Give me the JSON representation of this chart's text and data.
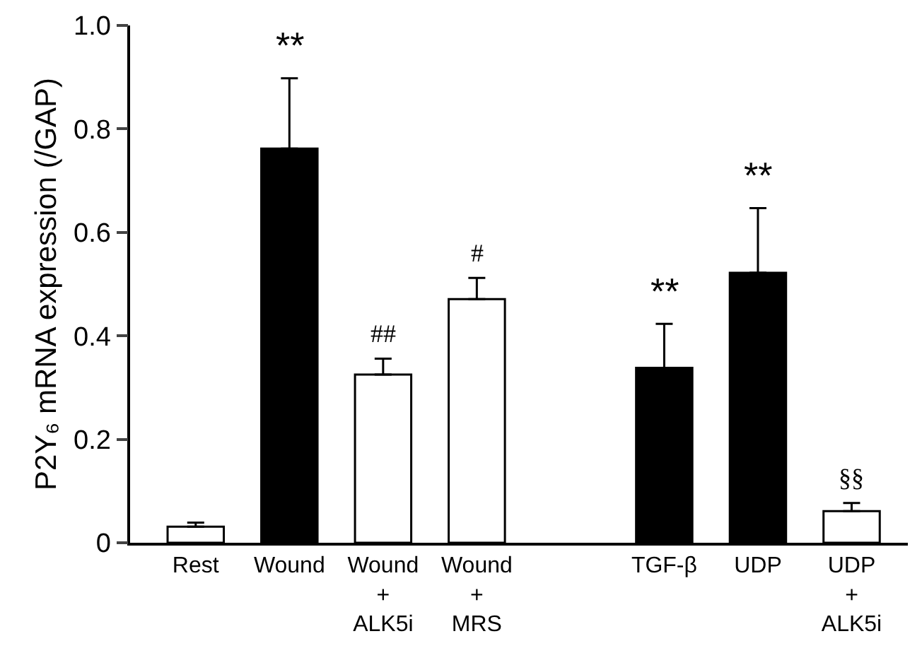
{
  "chart_data": {
    "type": "bar",
    "ylabel": "P2Y₆ mRNA expression (/GAP)",
    "categories": [
      "Rest",
      "Wound",
      "Wound\n+\nALK5i",
      "Wound\n+\nMRS",
      null,
      "TGF-β",
      "UDP",
      "UDP\n+\nALK5i"
    ],
    "values": [
      0.031,
      0.762,
      0.325,
      0.471,
      null,
      0.338,
      0.522,
      0.061
    ],
    "colors": [
      "#ffffff",
      "#000000",
      "#ffffff",
      "#ffffff",
      "#ffffff",
      "#000000",
      "#000000",
      "#ffffff"
    ],
    "errors": [
      [
        0.031,
        0.039
      ],
      [
        0.762,
        0.898
      ],
      [
        0.325,
        0.356
      ],
      [
        0.471,
        0.512
      ],
      null,
      [
        0.338,
        0.423
      ],
      [
        0.522,
        0.647
      ],
      [
        0.061,
        0.077
      ]
    ],
    "ylim": [
      0,
      1
    ],
    "yticks": [
      0,
      0.2,
      0.4,
      0.6,
      0.8,
      {
        "value": 1,
        "label": "1.0"
      }
    ],
    "grid": false,
    "annotations": [
      {
        "text": "**",
        "x": "Wound",
        "y": 0.9
      },
      {
        "text": "##",
        "x": "Wound\n+\nALK5i",
        "y": 0.356
      },
      {
        "text": "#",
        "x": "Wound\n+\nMRS",
        "y": 0.512
      },
      {
        "text": "**",
        "x": "TGF-β",
        "y": 0.423
      },
      {
        "text": "**",
        "x": "UDP",
        "y": 0.647
      },
      {
        "text": "§§",
        "x": "UDP\n+\nALK5i",
        "y": 0.077
      }
    ]
  }
}
